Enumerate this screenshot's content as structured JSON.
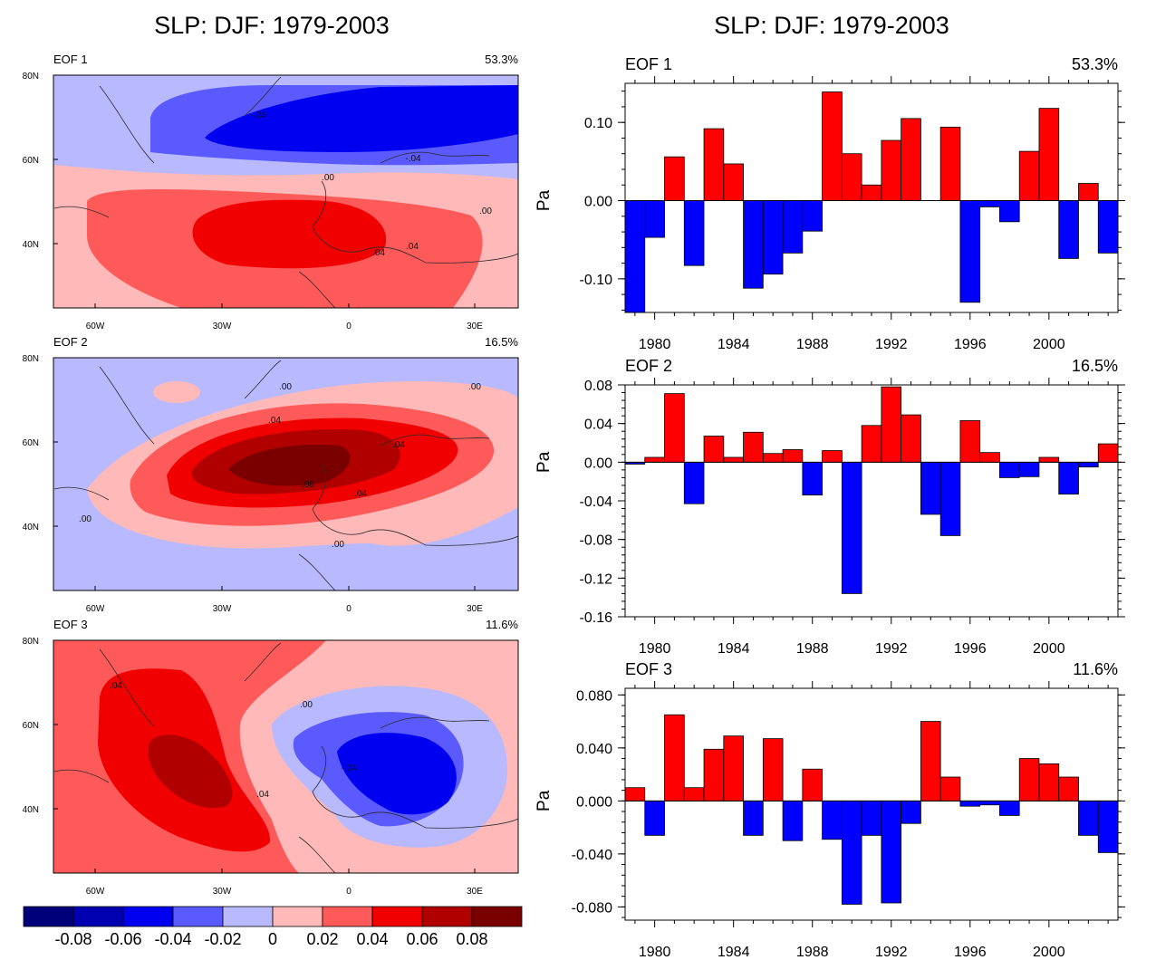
{
  "left_title": "SLP: DJF: 1979-2003",
  "right_title": "SLP: DJF: 1979-2003",
  "palette": [
    "#00007a",
    "#0000b0",
    "#0000f0",
    "#5a5aff",
    "#b9b9ff",
    "#ffb9b9",
    "#ff5a5a",
    "#f00000",
    "#b00000",
    "#7a0000"
  ],
  "colorbar_labels": [
    "-0.08",
    "-0.06",
    "-0.04",
    "-0.02",
    "0",
    "0.02",
    "0.04",
    "0.06",
    "0.08"
  ],
  "map_panels": [
    {
      "eof": "EOF 1",
      "pct": "53.3%"
    },
    {
      "eof": "EOF 2",
      "pct": "16.5%"
    },
    {
      "eof": "EOF 3",
      "pct": "11.6%"
    }
  ],
  "map_axes": {
    "lat_labels": [
      "80N",
      "60N",
      "40N"
    ],
    "lon_labels": [
      "60W",
      "30W",
      "0",
      "30E"
    ]
  },
  "contour_labels": [
    [
      "-.04",
      "-.04",
      ".00",
      ".00",
      ".04",
      ".04"
    ],
    [
      ".00",
      ".00",
      ".04",
      ".04",
      ".08",
      ".04",
      ".00",
      ".00"
    ],
    [
      ".04",
      ".00",
      "-.04",
      ".04"
    ]
  ],
  "chart_data": [
    {
      "type": "bar",
      "title": "EOF 1",
      "pct": "53.3%",
      "ylabel": "Pa",
      "ylim": [
        -0.143,
        0.15
      ],
      "yticks": [
        -0.1,
        0.0,
        0.1
      ],
      "ytick_labels": [
        "-0.10",
        "0.00",
        "0.10"
      ],
      "x": [
        1979,
        1980,
        1981,
        1982,
        1983,
        1984,
        1985,
        1986,
        1987,
        1988,
        1989,
        1990,
        1991,
        1992,
        1993,
        1994,
        1995,
        1996,
        1997,
        1998,
        1999,
        2000,
        2001,
        2002,
        2003
      ],
      "xtick_labels": [
        "1980",
        "1984",
        "1988",
        "1992",
        "1996",
        "2000"
      ],
      "values": [
        -0.143,
        -0.047,
        0.056,
        -0.083,
        0.092,
        0.047,
        -0.112,
        -0.094,
        -0.067,
        -0.039,
        0.139,
        0.06,
        0.02,
        0.077,
        0.105,
        0.0,
        0.094,
        -0.13,
        -0.008,
        -0.027,
        0.063,
        0.118,
        -0.074,
        0.022,
        -0.067
      ],
      "colors": {
        "positive": "#ff0000",
        "negative": "#0000ff"
      }
    },
    {
      "type": "bar",
      "title": "EOF 2",
      "pct": "16.5%",
      "ylabel": "Pa",
      "ylim": [
        -0.16,
        0.08
      ],
      "yticks": [
        -0.16,
        -0.12,
        -0.08,
        -0.04,
        0.0,
        0.04,
        0.08
      ],
      "ytick_labels": [
        "-0.16",
        "-0.12",
        "-0.08",
        "-0.04",
        "0.00",
        "0.04",
        "0.08"
      ],
      "x": [
        1979,
        1980,
        1981,
        1982,
        1983,
        1984,
        1985,
        1986,
        1987,
        1988,
        1989,
        1990,
        1991,
        1992,
        1993,
        1994,
        1995,
        1996,
        1997,
        1998,
        1999,
        2000,
        2001,
        2002,
        2003
      ],
      "xtick_labels": [
        "1980",
        "1984",
        "1988",
        "1992",
        "1996",
        "2000"
      ],
      "values": [
        -0.002,
        0.005,
        0.071,
        -0.043,
        0.027,
        0.005,
        0.031,
        0.009,
        0.013,
        -0.034,
        0.012,
        -0.136,
        0.038,
        0.078,
        0.049,
        -0.054,
        -0.076,
        0.043,
        0.01,
        -0.016,
        -0.015,
        0.005,
        -0.033,
        -0.005,
        0.019
      ],
      "colors": {
        "positive": "#ff0000",
        "negative": "#0000ff"
      }
    },
    {
      "type": "bar",
      "title": "EOF 3",
      "pct": "11.6%",
      "ylabel": "Pa",
      "ylim": [
        -0.09,
        0.085
      ],
      "yticks": [
        -0.08,
        -0.04,
        0.0,
        0.04,
        0.08
      ],
      "ytick_labels": [
        "-0.080",
        "-0.040",
        "0.000",
        "0.040",
        "0.080"
      ],
      "x": [
        1979,
        1980,
        1981,
        1982,
        1983,
        1984,
        1985,
        1986,
        1987,
        1988,
        1989,
        1990,
        1991,
        1992,
        1993,
        1994,
        1995,
        1996,
        1997,
        1998,
        1999,
        2000,
        2001,
        2002,
        2003
      ],
      "xtick_labels": [
        "1980",
        "1984",
        "1988",
        "1992",
        "1996",
        "2000"
      ],
      "values": [
        0.01,
        -0.026,
        0.065,
        0.01,
        0.039,
        0.049,
        -0.026,
        0.047,
        -0.03,
        0.024,
        -0.029,
        -0.078,
        -0.026,
        -0.077,
        -0.017,
        0.06,
        0.018,
        -0.004,
        -0.003,
        -0.011,
        0.032,
        0.028,
        0.018,
        -0.026,
        -0.039
      ],
      "colors": {
        "positive": "#ff0000",
        "negative": "#0000ff"
      }
    }
  ]
}
